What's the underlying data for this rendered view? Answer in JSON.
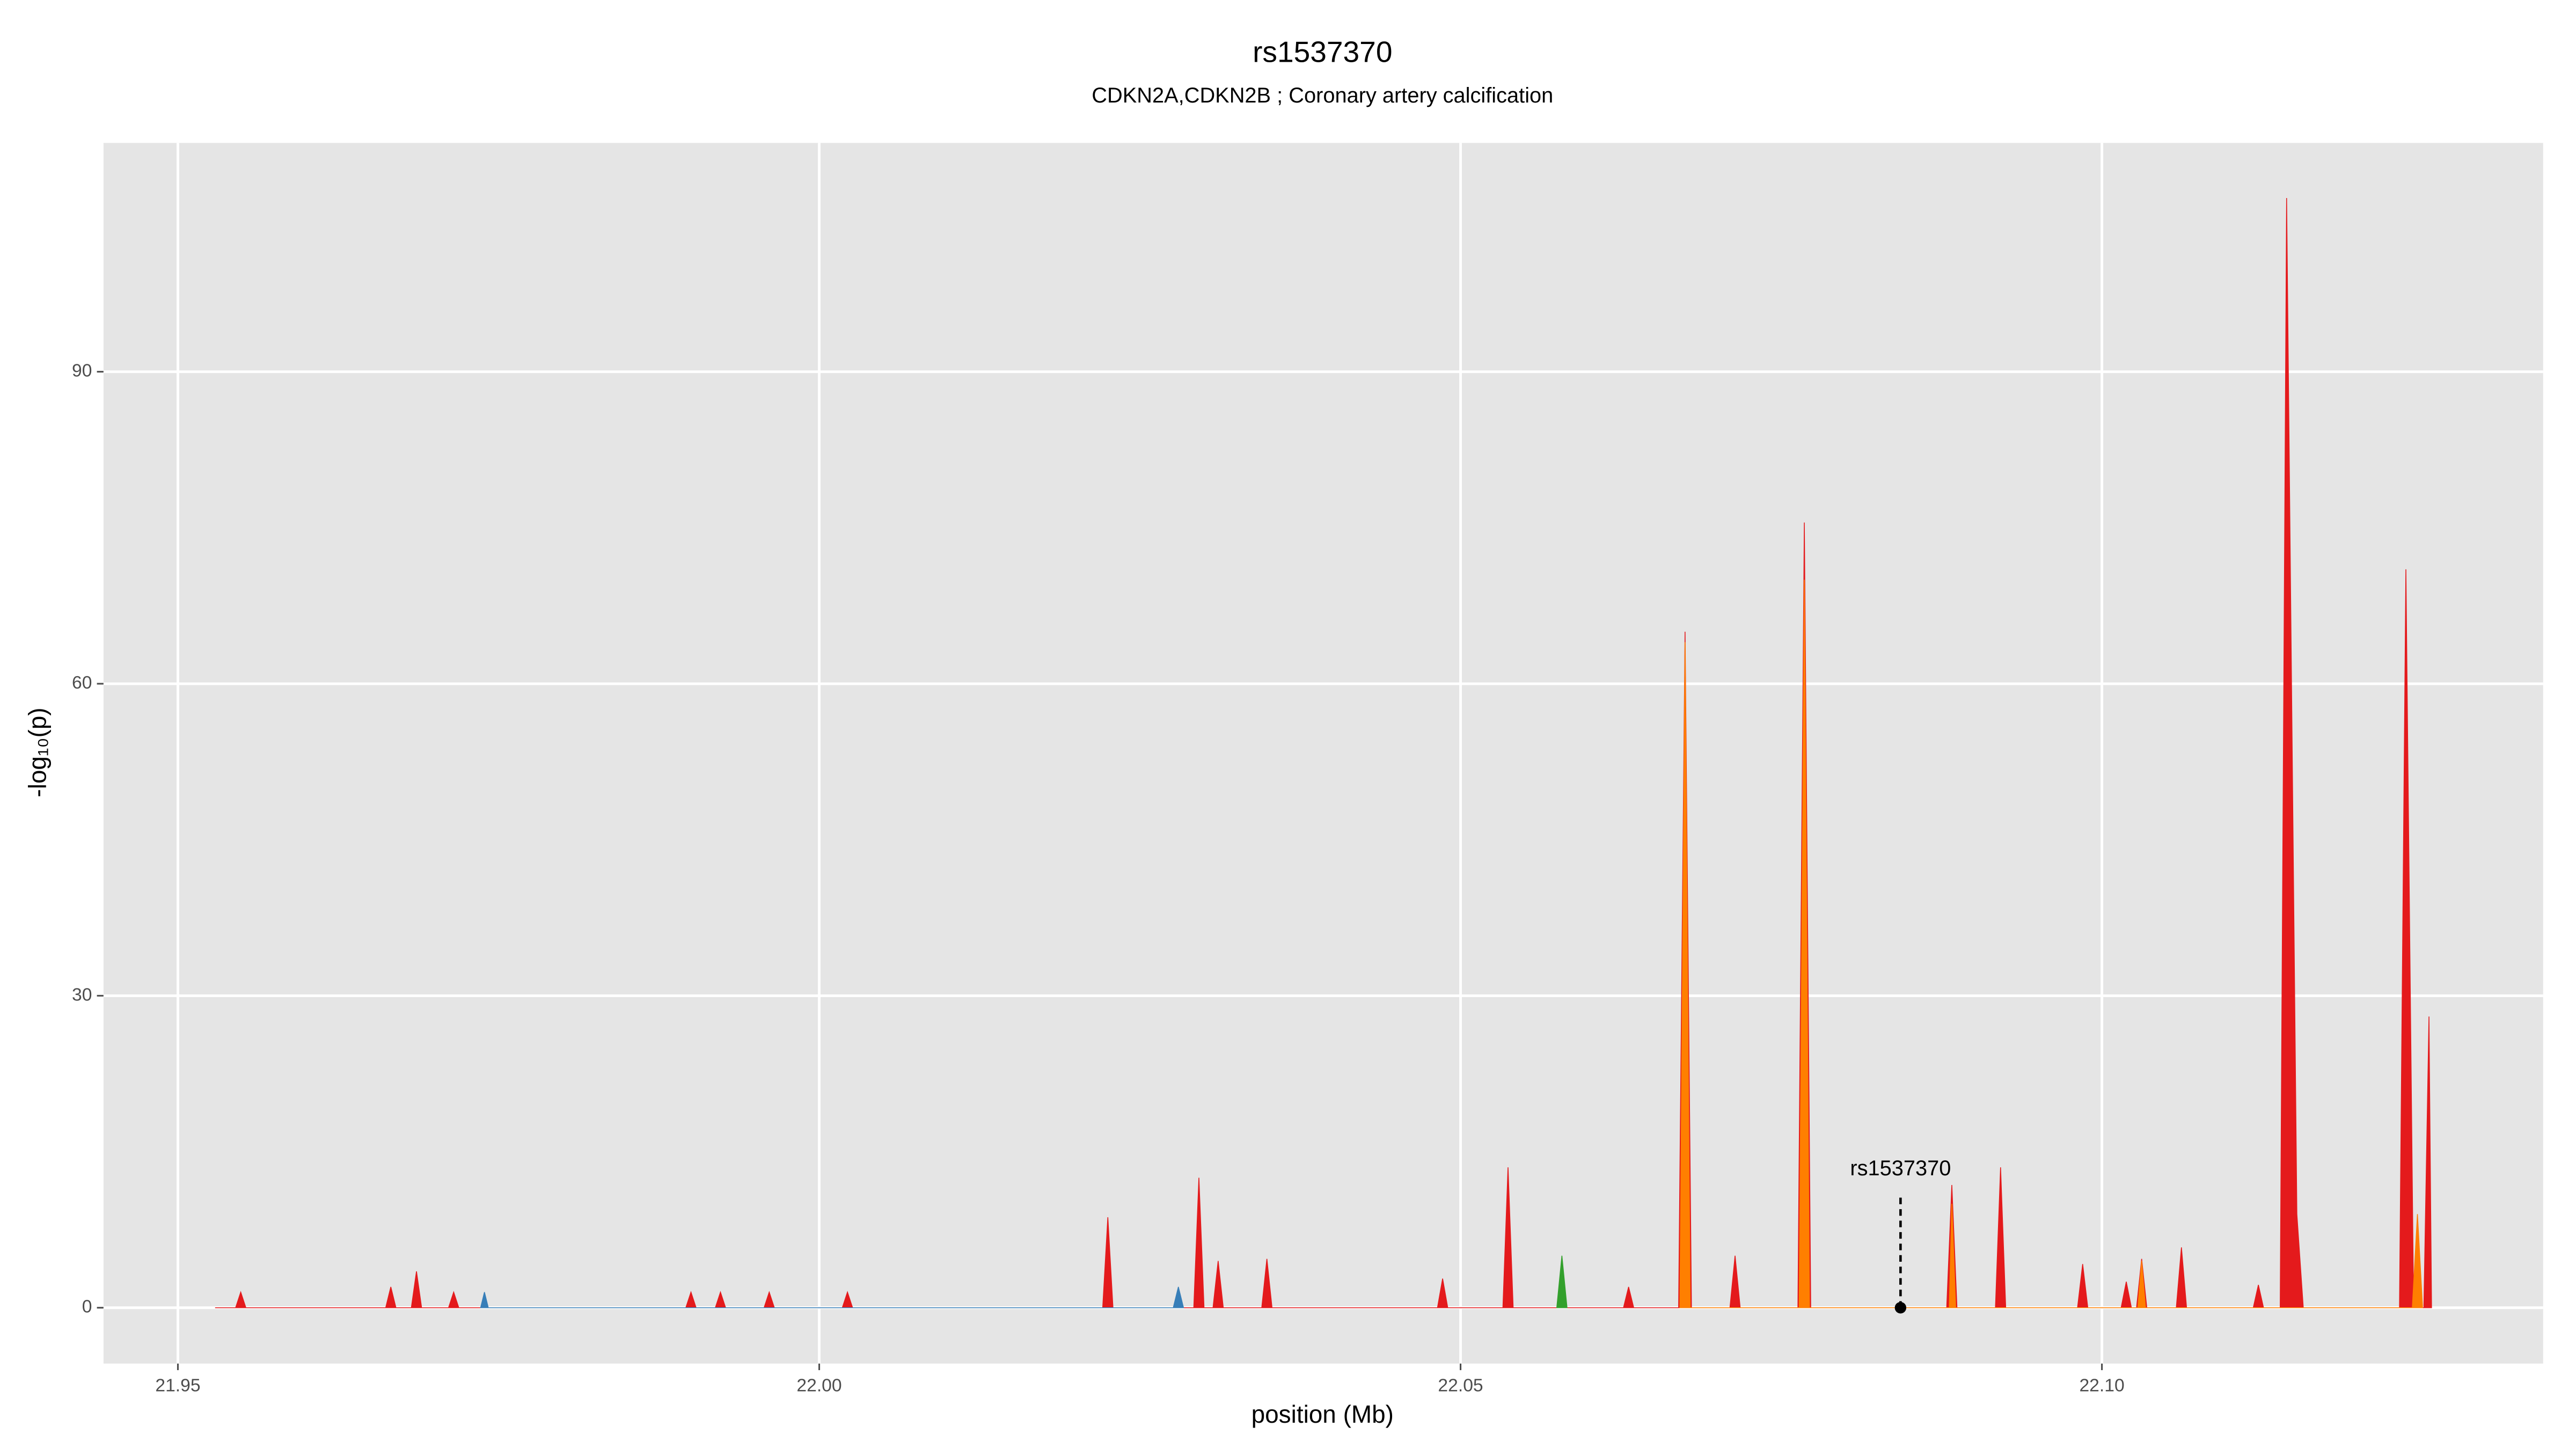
{
  "chart_data": {
    "type": "area",
    "title": "rs1537370",
    "subtitle": "CDKN2A,CDKN2B ; Coronary artery calcification",
    "xlabel": "position (Mb)",
    "ylabel": "-log₁₀(p)",
    "xlim": [
      21.9442,
      22.1344
    ],
    "ylim": [
      -5.37,
      112
    ],
    "xticks": [
      21.95,
      {
        "value": 22,
        "label": "22.00"
      },
      22.05,
      {
        "value": 22.1,
        "label": "22.10"
      }
    ],
    "yticks": [
      0,
      30,
      60,
      90
    ],
    "grid": true,
    "series": [
      {
        "color": "#e41a1c",
        "x": [
          21.9529,
          21.9545,
          21.9549,
          21.9553,
          21.9662,
          21.9666,
          21.967,
          21.9682,
          21.9686,
          21.969,
          21.9711,
          21.9715,
          21.9719,
          21.9896,
          21.99,
          21.9904,
          21.9919,
          21.9923,
          21.9927,
          21.9957,
          21.9961,
          21.9965,
          22.0018,
          22.0022,
          22.0026,
          22.0221,
          22.0225,
          22.0229,
          22.0292,
          22.0296,
          22.03,
          22.0307,
          22.0311,
          22.0315,
          22.0345,
          22.0349,
          22.0353,
          22.0482,
          22.0486,
          22.049,
          22.0533,
          22.0537,
          22.0541,
          22.0627,
          22.0631,
          22.0635,
          22.067,
          22.0675,
          22.068,
          22.071,
          22.0714,
          22.0718,
          22.0763,
          22.0768,
          22.0773,
          22.0879,
          22.0883,
          22.0887,
          22.0917,
          22.0921,
          22.0925,
          22.0981,
          22.0985,
          22.0989,
          22.1015,
          22.1019,
          22.1023,
          22.1027,
          22.1031,
          22.1035,
          22.1058,
          22.1062,
          22.1066,
          22.1118,
          22.1122,
          22.1126,
          22.1139,
          22.1144,
          22.1152,
          22.1157,
          22.1232,
          22.1237,
          22.1243,
          22.1251,
          22.1255,
          22.1257
        ],
        "values": [
          0,
          0,
          1.5,
          0,
          0,
          2,
          0,
          0,
          3.5,
          0,
          0,
          1.5,
          0,
          0,
          1.5,
          0,
          0,
          1.5,
          0,
          0,
          1.5,
          0,
          0,
          1.5,
          0,
          0,
          8.7,
          0,
          0,
          12.5,
          0,
          0,
          4.5,
          0,
          0,
          4.7,
          0,
          0,
          2.8,
          0,
          0,
          13.5,
          0,
          0,
          2,
          0,
          0,
          65,
          0,
          0,
          5,
          0,
          0,
          75.5,
          0,
          0,
          11.8,
          0,
          0,
          13.5,
          0,
          0,
          4.2,
          0,
          0,
          2.5,
          0,
          0,
          4.7,
          0,
          0,
          5.8,
          0,
          0,
          2.2,
          0,
          0,
          106.7,
          9,
          0,
          0,
          71,
          0,
          0,
          28,
          0
        ]
      },
      {
        "color": "#ff7f00",
        "x": [
          22.0671,
          22.0675,
          22.0679,
          22.0764,
          22.0768,
          22.0772,
          22.0881,
          22.0883,
          22.0886,
          22.1028,
          22.1031,
          22.1034,
          22.1242,
          22.1246,
          22.125
        ],
        "values": [
          0,
          64,
          0,
          0,
          70,
          0,
          0,
          10,
          0,
          0,
          4.5,
          0,
          0,
          9,
          0
        ]
      },
      {
        "color": "#33a02c",
        "x": [
          22.0575,
          22.0579,
          22.0583
        ],
        "values": [
          0,
          5,
          0
        ]
      },
      {
        "color": "#377eb8",
        "x": [
          21.9736,
          21.9739,
          21.9742,
          22.0276,
          22.028,
          22.0284
        ],
        "values": [
          0,
          1.5,
          0,
          0,
          2,
          0
        ]
      }
    ],
    "annotation": {
      "text": "rs1537370",
      "x": 22.0843,
      "y": 0
    }
  }
}
